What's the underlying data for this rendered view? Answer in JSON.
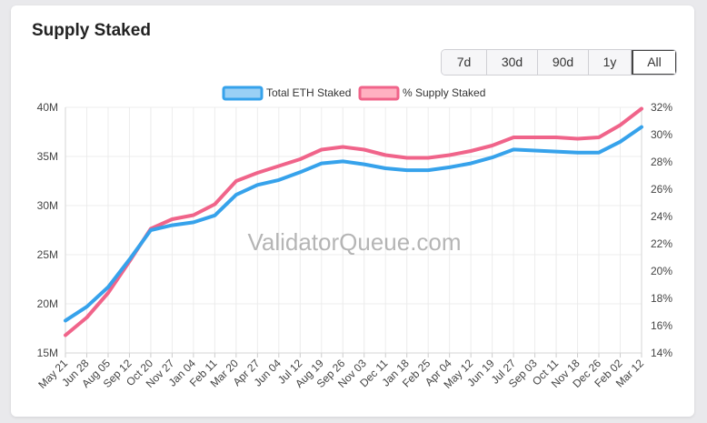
{
  "header": {
    "title": "Supply Staked"
  },
  "range_buttons": [
    "7d",
    "30d",
    "90d",
    "1y",
    "All"
  ],
  "active_range": "All",
  "watermark": "ValidatorQueue.com",
  "colors": {
    "eth": "#36a2eb",
    "pct": "#f0648a",
    "grid": "#ececec"
  },
  "chart_data": {
    "type": "line",
    "legend_position": "top",
    "grid": true,
    "x": [
      "May 21",
      "Jun 28",
      "Aug 05",
      "Sep 12",
      "Oct 20",
      "Nov 27",
      "Jan 04",
      "Feb 11",
      "Mar 20",
      "Apr 27",
      "Jun 04",
      "Jul 12",
      "Aug 19",
      "Sep 26",
      "Nov 03",
      "Dec 11",
      "Jan 18",
      "Feb 25",
      "Apr 04",
      "May 12",
      "Jun 19",
      "Jul 27",
      "Sep 03",
      "Oct 11",
      "Nov 18",
      "Dec 26",
      "Feb 02",
      "Mar 12"
    ],
    "y_left": {
      "ticks": [
        "15M",
        "20M",
        "25M",
        "30M",
        "35M",
        "40M"
      ],
      "ylim": [
        15,
        40
      ],
      "unit": "M"
    },
    "y_right": {
      "ticks": [
        "14%",
        "16%",
        "18%",
        "20%",
        "22%",
        "24%",
        "26%",
        "28%",
        "30%",
        "32%"
      ],
      "ylim": [
        14,
        32
      ],
      "unit": "%"
    },
    "series": [
      {
        "name": "Total ETH Staked",
        "axis": "left",
        "values": [
          18.3,
          19.7,
          21.7,
          24.5,
          27.5,
          28.0,
          28.3,
          29.0,
          31.1,
          32.1,
          32.6,
          33.4,
          34.3,
          34.5,
          34.2,
          33.8,
          33.6,
          33.6,
          33.9,
          34.3,
          34.9,
          35.7,
          35.6,
          35.5,
          35.4,
          35.4,
          36.5,
          38.0
        ]
      },
      {
        "name": "% Supply Staked",
        "axis": "right",
        "values": [
          15.3,
          16.6,
          18.4,
          20.7,
          23.1,
          23.8,
          24.1,
          24.9,
          26.6,
          27.2,
          27.7,
          28.2,
          28.9,
          29.1,
          28.9,
          28.5,
          28.3,
          28.3,
          28.5,
          28.8,
          29.2,
          29.8,
          29.8,
          29.8,
          29.7,
          29.8,
          30.7,
          31.9
        ]
      }
    ]
  }
}
